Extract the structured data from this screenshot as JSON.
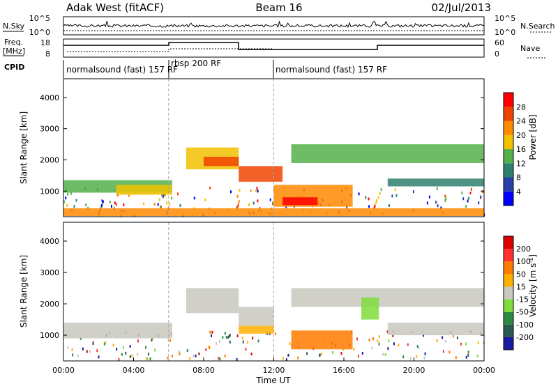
{
  "header": {
    "station": "Adak West (fitACF)",
    "beam": "Beam 16",
    "date": "02/Jul/2013"
  },
  "noise_panel": {
    "left_label": "N.Sky",
    "right_label": "N.Search",
    "left_ticks": [
      "10^5",
      "10^0"
    ],
    "right_ticks": [
      "10^5",
      "10^0"
    ]
  },
  "freq_panel": {
    "left_label_1": "Freq.",
    "left_label_2": "[MHz]",
    "left_ticks": [
      "18",
      "8"
    ],
    "right_label": "Nave",
    "right_ticks": [
      "60",
      "0"
    ]
  },
  "cpid": {
    "label": "CPID",
    "segments": [
      {
        "name": "normalsound (fast) 157 RF",
        "start_h": 0,
        "end_h": 6
      },
      {
        "name": "rbsp 200 RF",
        "start_h": 6,
        "end_h": 12
      },
      {
        "name": "normalsound (fast) 157 RF",
        "start_h": 12,
        "end_h": 24
      }
    ]
  },
  "power_panel": {
    "ylabel": "Slant Range [km]",
    "yticks": [
      "1000",
      "2000",
      "3000",
      "4000"
    ],
    "colorbar_label": "Power [dB]",
    "colorbar_ticks": [
      "4",
      "8",
      "12",
      "16",
      "20",
      "24",
      "28"
    ],
    "colors": [
      "#0000ff",
      "#2a3fa8",
      "#2f7f6e",
      "#55b04a",
      "#f2c200",
      "#ff8a00",
      "#ee4400",
      "#ff0000"
    ]
  },
  "velocity_panel": {
    "ylabel": "Slant Range [km]",
    "yticks": [
      "1000",
      "2000",
      "3000",
      "4000"
    ],
    "colorbar_label": "Velocity [m s^-1]",
    "colorbar_ticks": [
      "200",
      "100",
      "50",
      "15",
      "-15",
      "-50",
      "-100",
      "-200"
    ],
    "colors": [
      "#1a1aa0",
      "#2a5a50",
      "#2c8a40",
      "#7fdc3a",
      "#c8c8c0",
      "#ffb000",
      "#ff7a00",
      "#ff3030",
      "#dd0000"
    ]
  },
  "time_axis": {
    "label": "Time UT",
    "ticks": [
      "00:00",
      "04:00",
      "08:00",
      "12:00",
      "16:00",
      "20:00",
      "00:00"
    ]
  },
  "chart_data": {
    "type": "heatmap",
    "x_range_h": [
      0,
      24
    ],
    "y_range_km": [
      180,
      4600
    ],
    "power_bands": [
      {
        "t0": 0.0,
        "t1": 6.2,
        "r0": 950,
        "r1": 1350,
        "level": 3
      },
      {
        "t0": 3.0,
        "t1": 6.2,
        "r0": 880,
        "r1": 1200,
        "level": 4
      },
      {
        "t0": 7.0,
        "t1": 10.0,
        "r0": 1700,
        "r1": 2400,
        "level": 4
      },
      {
        "t0": 8.0,
        "t1": 10.0,
        "r0": 1800,
        "r1": 2100,
        "level": 6
      },
      {
        "t0": 10.0,
        "t1": 12.5,
        "r0": 1300,
        "r1": 1800,
        "level": 6
      },
      {
        "t0": 12.0,
        "t1": 16.5,
        "r0": 500,
        "r1": 1200,
        "level": 5
      },
      {
        "t0": 12.5,
        "t1": 14.5,
        "r0": 550,
        "r1": 800,
        "level": 7
      },
      {
        "t0": 13.0,
        "t1": 24.0,
        "r0": 1900,
        "r1": 2500,
        "level": 3
      },
      {
        "t0": 18.5,
        "t1": 24.0,
        "r0": 1150,
        "r1": 1400,
        "level": 2
      },
      {
        "t0": 0.0,
        "t1": 24.0,
        "r0": 200,
        "r1": 450,
        "level": 5
      }
    ],
    "velocity_bands": [
      {
        "t0": 0.0,
        "t1": 6.2,
        "r0": 900,
        "r1": 1400,
        "level": 4
      },
      {
        "t0": 7.0,
        "t1": 10.0,
        "r0": 1700,
        "r1": 2500,
        "level": 4
      },
      {
        "t0": 10.0,
        "t1": 12.0,
        "r0": 1300,
        "r1": 1900,
        "level": 4
      },
      {
        "t0": 10.0,
        "t1": 12.0,
        "r0": 1050,
        "r1": 1300,
        "level": 5
      },
      {
        "t0": 13.0,
        "t1": 16.5,
        "r0": 550,
        "r1": 1150,
        "level": 6
      },
      {
        "t0": 13.0,
        "t1": 24.0,
        "r0": 1900,
        "r1": 2500,
        "level": 4
      },
      {
        "t0": 17.0,
        "t1": 18.0,
        "r0": 1500,
        "r1": 2200,
        "level": 3
      },
      {
        "t0": 18.5,
        "t1": 24.0,
        "r0": 1000,
        "r1": 1400,
        "level": 4
      }
    ]
  }
}
